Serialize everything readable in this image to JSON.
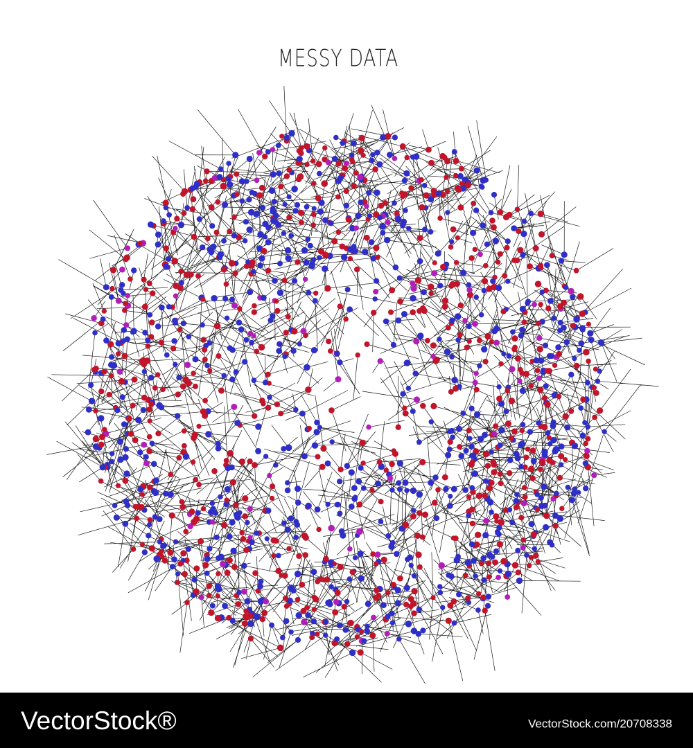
{
  "title": "MESSY DATA",
  "watermark": {
    "brand": "VectorStock®",
    "id": "VectorStock.com/20708338"
  }
}
